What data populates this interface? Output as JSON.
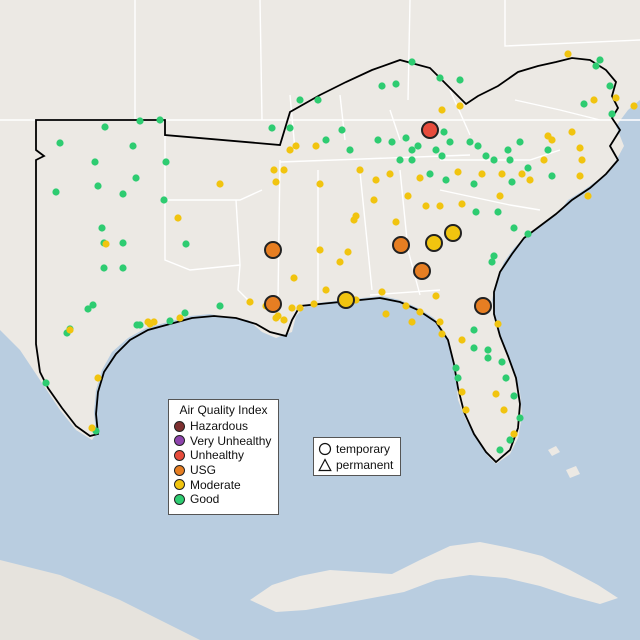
{
  "map": {
    "colors": {
      "water": "#b9cde0",
      "land": "#ece9e4",
      "border": "#ffffff",
      "region_outline": "#000000"
    }
  },
  "legend_aqi": {
    "title": "Air Quality Index",
    "items": [
      {
        "label": "Hazardous",
        "color": "#7e3030"
      },
      {
        "label": "Very Unhealthy",
        "color": "#8e44ad"
      },
      {
        "label": "Unhealthy",
        "color": "#e74c3c"
      },
      {
        "label": "USG",
        "color": "#e67e22"
      },
      {
        "label": "Moderate",
        "color": "#f1c40f"
      },
      {
        "label": "Good",
        "color": "#2ecc71"
      }
    ]
  },
  "legend_monitor": {
    "items": [
      {
        "label": "temporary",
        "shape": "circle"
      },
      {
        "label": "permanent",
        "shape": "triangle"
      }
    ]
  }
}
